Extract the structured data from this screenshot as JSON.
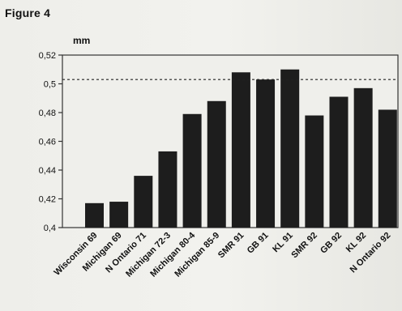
{
  "figure_label": "Figure 4",
  "chart_data": {
    "type": "bar",
    "title": "",
    "xlabel": "",
    "ylabel": "mm",
    "categories": [
      "Wisconsin 69",
      "Michigan 69",
      "N Ontario 71",
      "Michigan 72-3",
      "Michigan 80-4",
      "Michigan 85-9",
      "SMR 91",
      "GB 91",
      "KL 91",
      "SMR 92",
      "GB 92",
      "KL 92",
      "N Ontario 92"
    ],
    "values": [
      0.417,
      0.418,
      0.436,
      0.453,
      0.479,
      0.488,
      0.508,
      0.503,
      0.51,
      0.478,
      0.491,
      0.497,
      0.482
    ],
    "ylim": [
      0.4,
      0.52
    ],
    "yticks": [
      0.4,
      0.42,
      0.44,
      0.46,
      0.48,
      0.5,
      0.52
    ],
    "ytick_labels": [
      "0,4",
      "0,42",
      "0,44",
      "0,46",
      "0,48",
      "0,5",
      "0,52"
    ],
    "reference_line": 0.503,
    "grid": false,
    "legend": "none",
    "colors": {
      "bar": "#1d1d1d",
      "axis": "#333333",
      "plot_background": "#efefeb"
    }
  }
}
